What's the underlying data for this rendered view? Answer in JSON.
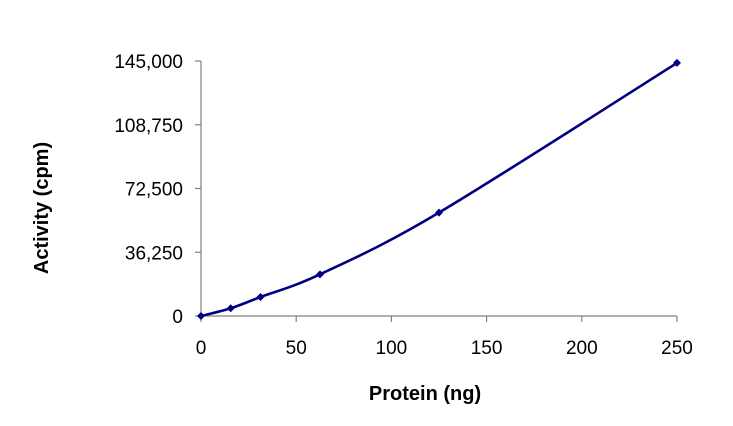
{
  "chart_data": {
    "type": "line",
    "title": "",
    "xlabel": "Protein (ng)",
    "ylabel": "Activity (cpm)",
    "xlim": [
      0,
      250
    ],
    "ylim": [
      0,
      145000
    ],
    "xticks": [
      0,
      50,
      100,
      150,
      200,
      250
    ],
    "xtick_labels": [
      "0",
      "50",
      "100",
      "150",
      "200",
      "250"
    ],
    "yticks": [
      0,
      36250,
      72500,
      108750,
      145000
    ],
    "ytick_labels": [
      "0",
      "36,250",
      "72,500",
      "108,750",
      "145,000"
    ],
    "grid": false,
    "legend": "none",
    "series": [
      {
        "name": "Activity",
        "color": "#000080",
        "marker": "diamond",
        "x": [
          0,
          15.6,
          31.25,
          62.5,
          125,
          250
        ],
        "y": [
          0,
          4400,
          10800,
          23700,
          58800,
          143900
        ]
      }
    ]
  }
}
